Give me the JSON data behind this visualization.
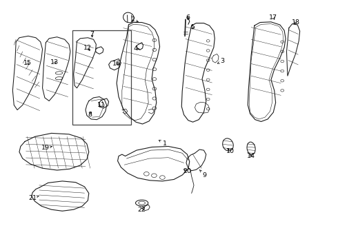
{
  "bg_color": "#ffffff",
  "line_color": "#1a1a1a",
  "figsize": [
    4.9,
    3.6
  ],
  "dpi": 100,
  "label_arrows": {
    "1": {
      "lxy": [
        0.488,
        0.418
      ],
      "txy": [
        0.468,
        0.435
      ]
    },
    "2": {
      "lxy": [
        0.39,
        0.93
      ],
      "txy": [
        0.408,
        0.92
      ]
    },
    "3": {
      "lxy": [
        0.66,
        0.758
      ],
      "txy": [
        0.645,
        0.748
      ]
    },
    "4": {
      "lxy": [
        0.398,
        0.81
      ],
      "txy": [
        0.412,
        0.808
      ]
    },
    "5": {
      "lxy": [
        0.572,
        0.898
      ],
      "txy": [
        0.57,
        0.882
      ]
    },
    "6": {
      "lxy": [
        0.556,
        0.938
      ],
      "txy": [
        0.558,
        0.92
      ]
    },
    "7": {
      "lxy": [
        0.268,
        0.87
      ],
      "txy": [
        0.268,
        0.855
      ]
    },
    "8": {
      "lxy": [
        0.262,
        0.538
      ],
      "txy": [
        0.265,
        0.552
      ]
    },
    "9": {
      "lxy": [
        0.608,
        0.288
      ],
      "txy": [
        0.592,
        0.312
      ]
    },
    "10": {
      "lxy": [
        0.685,
        0.388
      ],
      "txy": [
        0.672,
        0.405
      ]
    },
    "11": {
      "lxy": [
        0.295,
        0.578
      ],
      "txy": [
        0.29,
        0.568
      ]
    },
    "12": {
      "lxy": [
        0.255,
        0.812
      ],
      "txy": [
        0.262,
        0.8
      ]
    },
    "13": {
      "lxy": [
        0.155,
        0.755
      ],
      "txy": [
        0.162,
        0.742
      ]
    },
    "14": {
      "lxy": [
        0.748,
        0.368
      ],
      "txy": [
        0.742,
        0.382
      ]
    },
    "15": {
      "lxy": [
        0.072,
        0.752
      ],
      "txy": [
        0.082,
        0.738
      ]
    },
    "16": {
      "lxy": [
        0.342,
        0.748
      ],
      "txy": [
        0.355,
        0.745
      ]
    },
    "17": {
      "lxy": [
        0.815,
        0.938
      ],
      "txy": [
        0.822,
        0.922
      ]
    },
    "18": {
      "lxy": [
        0.882,
        0.918
      ],
      "txy": [
        0.878,
        0.902
      ]
    },
    "19": {
      "lxy": [
        0.128,
        0.402
      ],
      "txy": [
        0.148,
        0.408
      ]
    },
    "20": {
      "lxy": [
        0.555,
        0.305
      ],
      "txy": [
        0.538,
        0.318
      ]
    },
    "21": {
      "lxy": [
        0.088,
        0.195
      ],
      "txy": [
        0.108,
        0.205
      ]
    },
    "22": {
      "lxy": [
        0.418,
        0.148
      ],
      "txy": [
        0.428,
        0.162
      ]
    }
  }
}
